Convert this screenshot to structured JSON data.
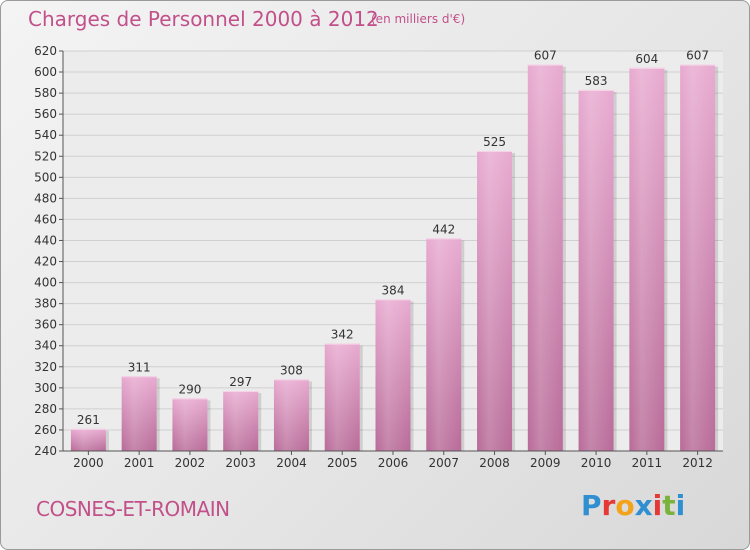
{
  "header": {
    "title": "Charges de Personnel 2000 à 2012",
    "subtitle": "(en milliers d'€)"
  },
  "footer": {
    "location": "COSNES-ET-ROMAIN",
    "logo_text": "Proxiti"
  },
  "colors": {
    "accent": "#c2508a",
    "bar_light": "#e8aad0",
    "bar_dark": "#b86b98",
    "logo": [
      "#2f8fd0",
      "#e53935",
      "#f2a31b",
      "#2f8fd0",
      "#e53935",
      "#7ab33c",
      "#2f8fd0"
    ]
  },
  "chart_data": {
    "type": "bar",
    "categories": [
      "2000",
      "2001",
      "2002",
      "2003",
      "2004",
      "2005",
      "2006",
      "2007",
      "2008",
      "2009",
      "2010",
      "2011",
      "2012"
    ],
    "values": [
      261,
      311,
      290,
      297,
      308,
      342,
      384,
      442,
      525,
      607,
      583,
      604,
      607
    ],
    "ylim": [
      240,
      620
    ],
    "yticks": [
      240,
      260,
      280,
      300,
      320,
      340,
      360,
      380,
      400,
      420,
      440,
      460,
      480,
      500,
      520,
      540,
      560,
      580,
      600,
      620
    ],
    "grid": true
  }
}
